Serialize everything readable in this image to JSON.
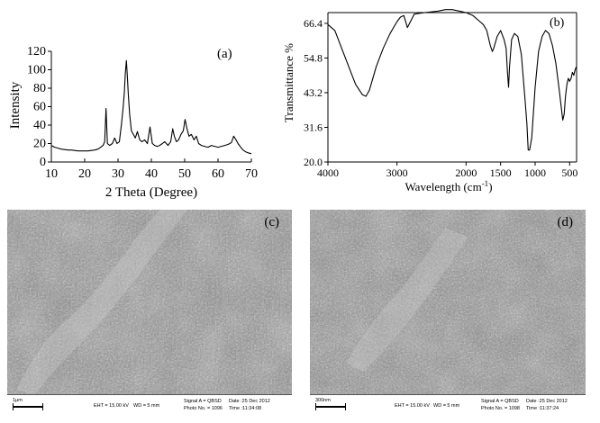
{
  "chart_data": [
    {
      "type": "line",
      "panel_label": "(a)",
      "xlabel": "2 Theta (Degree)",
      "ylabel": "Intensity",
      "xlim": [
        10,
        70
      ],
      "ylim": [
        0,
        120
      ],
      "xticks": [
        10,
        20,
        30,
        40,
        50,
        60,
        70
      ],
      "yticks": [
        0,
        20,
        40,
        60,
        80,
        100,
        120
      ],
      "series": [
        {
          "x": [
            10,
            11,
            12,
            13,
            14,
            15,
            16,
            17,
            18,
            19,
            20,
            21,
            22,
            23,
            24,
            24.8,
            25.5,
            26,
            26.4,
            26.8,
            27.5,
            28.3,
            29,
            29.7,
            30.4,
            31,
            31.5,
            31.9,
            32.2,
            32.5,
            32.8,
            33.1,
            33.5,
            34,
            34.6,
            35.2,
            35.8,
            36.5,
            37.2,
            38,
            38.8,
            39.6,
            40.3,
            41,
            41.7,
            42.5,
            43.3,
            44,
            45,
            45.8,
            46.4,
            46.9,
            47.5,
            48.2,
            48.9,
            49.6,
            50.1,
            50.7,
            51.3,
            52,
            52.8,
            53.5,
            54.2,
            55,
            56,
            57,
            58,
            59,
            60,
            61,
            62,
            63,
            64,
            64.7,
            65.4,
            66,
            66.8,
            67.5,
            68.3,
            69,
            70
          ],
          "y": [
            18,
            16,
            15,
            14,
            13.5,
            13,
            13,
            12.5,
            12,
            12,
            12,
            12,
            12.5,
            13,
            14,
            16,
            18,
            22,
            58,
            20,
            18,
            20,
            26,
            20,
            22,
            40,
            58,
            75,
            96,
            110,
            92,
            72,
            52,
            34,
            30,
            26,
            33,
            24,
            22,
            24,
            20,
            38,
            20,
            18,
            17,
            18,
            20,
            22,
            18,
            22,
            36,
            28,
            22,
            24,
            30,
            34,
            46,
            36,
            28,
            30,
            24,
            28,
            20,
            18,
            17,
            16,
            18,
            17,
            16,
            17,
            18,
            19,
            21,
            28,
            24,
            20,
            16,
            13,
            11,
            10,
            9
          ]
        }
      ]
    },
    {
      "type": "line",
      "panel_label": "(b)",
      "xlabel": "Wavelength (cm",
      "xlabel_sup": "-1",
      "xlabel_end": ")",
      "ylabel": "Transmittance %",
      "xlim": [
        4000,
        400
      ],
      "ylim": [
        20.0,
        70.0
      ],
      "xticks": [
        4000,
        3000,
        2000,
        1500,
        1000,
        500
      ],
      "xtick_labels": [
        "4000",
        "3000",
        "2000",
        "1500",
        "1000",
        "500"
      ],
      "yticks": [
        20.0,
        31.6,
        43.2,
        54.8,
        66.4
      ],
      "ytick_labels": [
        "20.0",
        "31.6",
        "43.2",
        "54.8",
        "66.4"
      ],
      "series": [
        {
          "x": [
            4000,
            3900,
            3800,
            3700,
            3600,
            3500,
            3450,
            3400,
            3300,
            3200,
            3100,
            3000,
            2950,
            2900,
            2850,
            2750,
            2600,
            2400,
            2300,
            2200,
            2100,
            2000,
            1900,
            1800,
            1750,
            1700,
            1650,
            1620,
            1600,
            1550,
            1500,
            1450,
            1420,
            1400,
            1385,
            1370,
            1340,
            1300,
            1250,
            1200,
            1150,
            1120,
            1100,
            1080,
            1050,
            1000,
            950,
            900,
            850,
            800,
            750,
            700,
            650,
            620,
            600,
            580,
            560,
            540,
            520,
            500,
            480,
            460,
            440,
            420,
            400
          ],
          "y": [
            66,
            64,
            58,
            52,
            46,
            42.5,
            42,
            44,
            52,
            58,
            63,
            67,
            68.5,
            69,
            65,
            69.5,
            70,
            70.5,
            71,
            71,
            70.5,
            70,
            69,
            67,
            66,
            64,
            59,
            57,
            58,
            62,
            64,
            61,
            58,
            50,
            45,
            52,
            61,
            63,
            62,
            56,
            42,
            33,
            24,
            24,
            28,
            45,
            57,
            62,
            64,
            63,
            59,
            53,
            44,
            38,
            34,
            36,
            42,
            46,
            48,
            47,
            48,
            50,
            49,
            51,
            52
          ]
        }
      ]
    }
  ],
  "micrographs": [
    {
      "label": "(c)",
      "scale": "1µm",
      "eht": "EHT = 15.00 kV",
      "wd": "WD =   5 mm",
      "signal": "Signal A = QBSD",
      "photo": "Photo No. = 1096",
      "date": "Date :25 Dec 2012",
      "time": "Time :11:34:08"
    },
    {
      "label": "(d)",
      "scale": "300nm",
      "eht": "EHT = 15.00 kV",
      "wd": "WD =   5 mm",
      "signal": "Signal A = QBSD",
      "photo": "Photo No. = 1098",
      "date": "Date :25 Dec 2012",
      "time": "Time :11:37:24"
    }
  ]
}
